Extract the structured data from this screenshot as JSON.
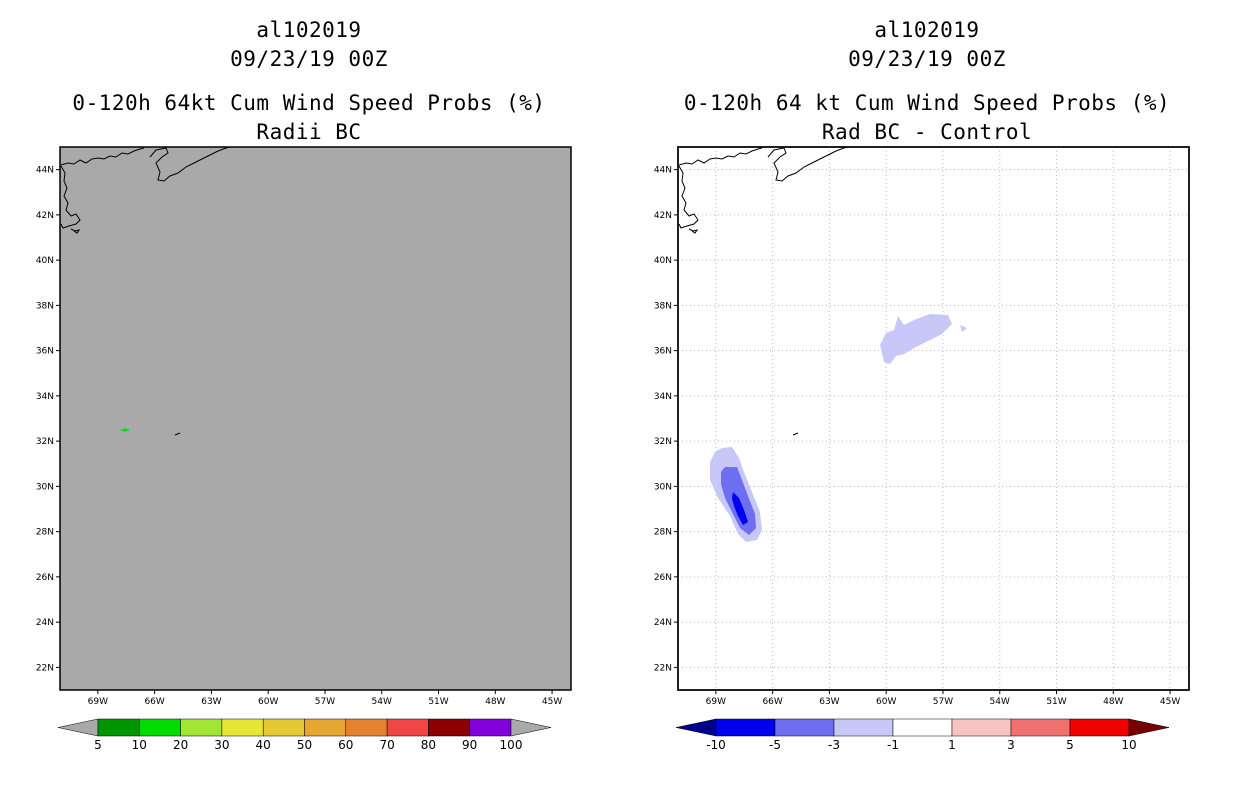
{
  "panels": [
    {
      "id": "left",
      "storm_id": "al102019",
      "datetime": "09/23/19 00Z",
      "product_title": "0-120h 64kt Cum Wind Speed Probs (%)",
      "subtitle": "Radii BC",
      "background": "#a9a9a9",
      "grid": false,
      "lat_labels": [
        "44N",
        "42N",
        "40N",
        "38N",
        "36N",
        "34N",
        "32N",
        "30N",
        "28N",
        "26N",
        "24N",
        "22N"
      ],
      "lon_labels": [
        "69W",
        "66W",
        "63W",
        "60W",
        "57W",
        "54W",
        "51W",
        "48W",
        "45W"
      ],
      "colorbar": {
        "labels": [
          "5",
          "10",
          "20",
          "30",
          "40",
          "50",
          "60",
          "70",
          "80",
          "90",
          "100"
        ],
        "colors": [
          "#a9a9a9",
          "#009600",
          "#00dc00",
          "#a0e632",
          "#e6e632",
          "#e6c832",
          "#e6a632",
          "#e6822e",
          "#f04646",
          "#8c0000",
          "#8200dc",
          "#a9a9a9"
        ]
      }
    },
    {
      "id": "right",
      "storm_id": "al102019",
      "datetime": "09/23/19 00Z",
      "product_title": "0-120h 64 kt Cum Wind Speed Probs (%)",
      "subtitle": "Rad BC - Control",
      "background": "#ffffff",
      "grid": true,
      "lat_labels": [
        "44N",
        "42N",
        "40N",
        "38N",
        "36N",
        "34N",
        "32N",
        "30N",
        "28N",
        "26N",
        "24N",
        "22N"
      ],
      "lon_labels": [
        "69W",
        "66W",
        "63W",
        "60W",
        "57W",
        "54W",
        "51W",
        "48W",
        "45W"
      ],
      "colorbar": {
        "labels": [
          "-10",
          "-5",
          "-3",
          "-1",
          "1",
          "3",
          "5",
          "10"
        ],
        "colors": [
          "#00008c",
          "#0000f0",
          "#6e6ef0",
          "#c8c8f8",
          "#ffffff",
          "#fac3c3",
          "#f07070",
          "#f00000",
          "#780000"
        ]
      }
    }
  ],
  "colors": {
    "contour_light": "#c8c8f8",
    "contour_mid": "#6e6ef0",
    "contour_dark": "#0000f0",
    "left_marker": "#00dc00"
  }
}
